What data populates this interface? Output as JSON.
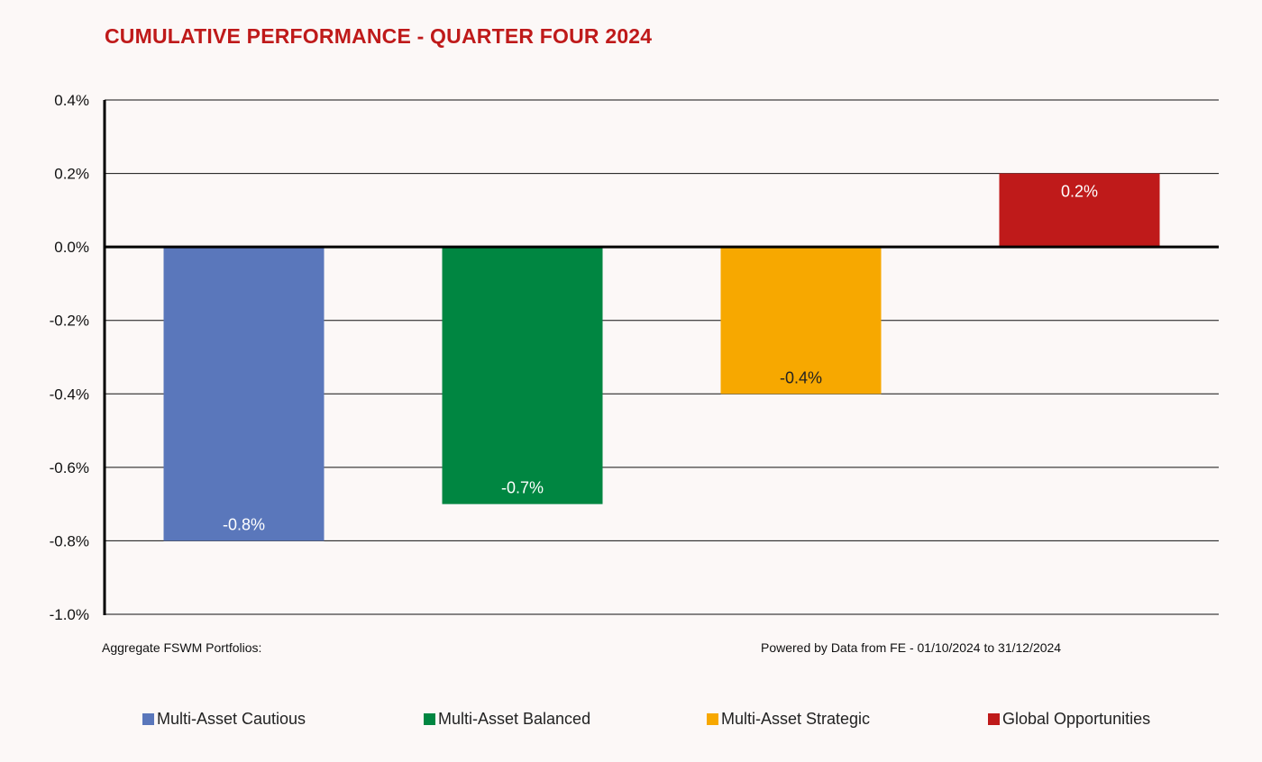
{
  "colors": {
    "background": "#fcf8f7",
    "title": "#bf1a1a"
  },
  "chart_data": {
    "type": "bar",
    "title": "CUMULATIVE PERFORMANCE - QUARTER FOUR 2024",
    "xlabel": "",
    "ylabel": "",
    "categories": [
      "Multi-Asset Cautious",
      "Multi-Asset Balanced",
      "Multi-Asset Strategic",
      "Global Opportunities"
    ],
    "values": [
      -0.8,
      -0.7,
      -0.4,
      0.2
    ],
    "data_labels": [
      "-0.8%",
      "-0.7%",
      "-0.4%",
      "0.2%"
    ],
    "colors": [
      "#5a77bb",
      "#008641",
      "#f7a800",
      "#bf1a1a"
    ],
    "ylim": [
      -1.0,
      0.4
    ],
    "yticks": [
      0.4,
      0.2,
      0.0,
      -0.2,
      -0.4,
      -0.6,
      -0.8,
      -1.0
    ],
    "ytick_labels": [
      "0.4%",
      "0.2%",
      "0.0%",
      "-0.2%",
      "-0.4%",
      "-0.6%",
      "-0.8%",
      "-1.0%"
    ],
    "grid": true,
    "legend": {
      "placement": "bottom",
      "entries": [
        "Multi-Asset Cautious",
        "Multi-Asset Balanced",
        "Multi-Asset Strategic",
        "Global Opportunities"
      ]
    }
  },
  "footnotes": {
    "left": "Aggregate FSWM Portfolios:",
    "right": "Powered by Data from FE - 01/10/2024 to 31/12/2024"
  }
}
